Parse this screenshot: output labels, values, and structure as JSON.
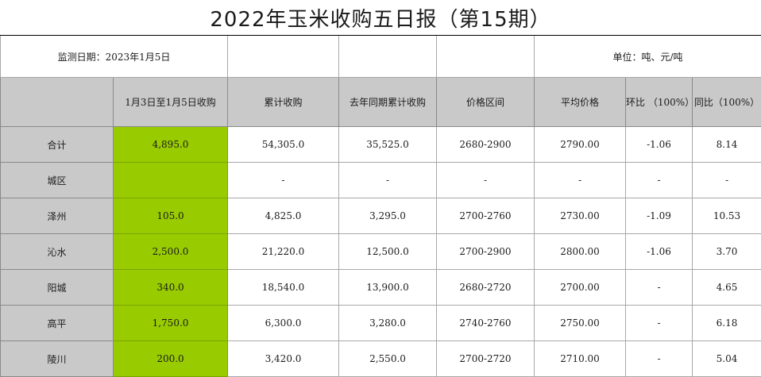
{
  "title": "2022年玉米收购五日报（第15期）",
  "meta": {
    "date_label": "监测日期：2023年1月5日",
    "unit_label": "单位：吨、元/吨"
  },
  "colors": {
    "accent_green": "#99cc00",
    "header_gray": "#c9c9c9"
  },
  "headers": [
    "",
    "1月3日至1月5日收购",
    "累计收购",
    "去年同期累计收购",
    "价格区间",
    "平均价格",
    "环比 （100%）",
    "同比（100%）"
  ],
  "rows": [
    {
      "region": "合计",
      "period": "4,895.0",
      "cumulative": "54,305.0",
      "last_year": "35,525.0",
      "price_range": "2680-2900",
      "avg_price": "2790.00",
      "mom": "-1.06",
      "yoy": "8.14"
    },
    {
      "region": "城区",
      "period": "",
      "cumulative": "-",
      "last_year": "-",
      "price_range": "-",
      "avg_price": "-",
      "mom": "-",
      "yoy": "-"
    },
    {
      "region": "泽州",
      "period": "105.0",
      "cumulative": "4,825.0",
      "last_year": "3,295.0",
      "price_range": "2700-2760",
      "avg_price": "2730.00",
      "mom": "-1.09",
      "yoy": "10.53"
    },
    {
      "region": "沁水",
      "period": "2,500.0",
      "cumulative": "21,220.0",
      "last_year": "12,500.0",
      "price_range": "2700-2900",
      "avg_price": "2800.00",
      "mom": "-1.06",
      "yoy": "3.70"
    },
    {
      "region": "阳城",
      "period": "340.0",
      "cumulative": "18,540.0",
      "last_year": "13,900.0",
      "price_range": "2680-2720",
      "avg_price": "2700.00",
      "mom": "-",
      "yoy": "4.65"
    },
    {
      "region": "高平",
      "period": "1,750.0",
      "cumulative": "6,300.0",
      "last_year": "3,280.0",
      "price_range": "2740-2760",
      "avg_price": "2750.00",
      "mom": "-",
      "yoy": "6.18"
    },
    {
      "region": "陵川",
      "period": "200.0",
      "cumulative": "3,420.0",
      "last_year": "2,550.0",
      "price_range": "2700-2720",
      "avg_price": "2710.00",
      "mom": "-",
      "yoy": "5.04"
    }
  ]
}
